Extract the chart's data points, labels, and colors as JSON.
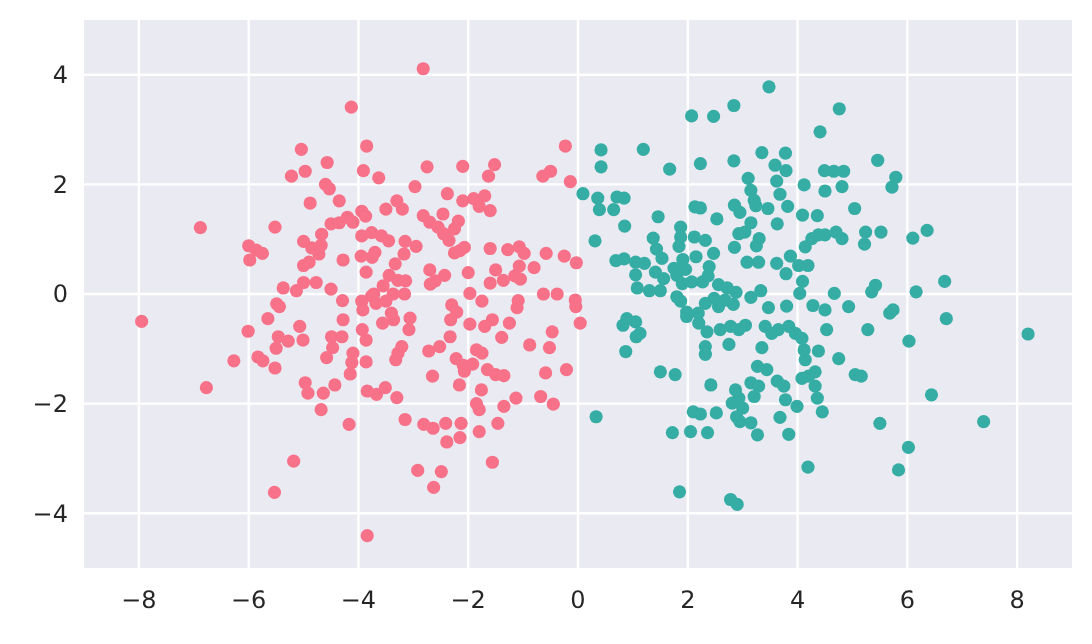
{
  "chart_data": {
    "type": "scatter",
    "marker": "circle",
    "grid": true,
    "xlim": [
      -9,
      9
    ],
    "ylim": [
      -5,
      5
    ],
    "xticks": [
      {
        "value": -8,
        "label": "−8"
      },
      {
        "value": -6,
        "label": "−6"
      },
      {
        "value": -4,
        "label": "−4"
      },
      {
        "value": -2,
        "label": "−2"
      },
      0,
      2,
      4,
      6,
      8
    ],
    "yticks": [
      {
        "value": -4,
        "label": "−4"
      },
      {
        "value": -2,
        "label": "−2"
      },
      0,
      2,
      4
    ],
    "series": [
      {
        "color": "#f77189",
        "x": [
          -2.82,
          -4.13,
          -5.04,
          -3.85,
          -4.57,
          -5.22,
          -4.97,
          -3.91,
          -3.63,
          -2.75,
          -2.1,
          -1.52,
          -1.63,
          -0.23,
          -0.64,
          -0.5,
          -0.14,
          -4.6,
          -4.53,
          -2.97,
          -4.35,
          -4.88,
          -3.3,
          -3.5,
          -3.2,
          -2.38,
          -2.1,
          -1.9,
          -1.7,
          -1.8,
          -1.6,
          -3.94,
          -3.87,
          -4.2,
          -4.1,
          -4.5,
          -4.35,
          -6.88,
          -5.52,
          -2.82,
          -2.7,
          -2.55,
          -2.45,
          -2.35,
          -2.25,
          -2.46,
          -2.18,
          -3.76,
          -3.58,
          -3.45,
          -3.94,
          -5.0,
          -4.85,
          -4.67,
          -4.68,
          -4.72,
          -6.0,
          -5.86,
          -5.75,
          -5.98,
          -3.15,
          -2.95,
          -3.17,
          -3.95,
          -3.75,
          -3.86,
          -3.7,
          -3.33,
          -4.28,
          -5.0,
          -4.9,
          -2.15,
          -2.07,
          -2.25,
          -1.6,
          -1.28,
          -1.07,
          -0.98,
          -1.07,
          -0.8,
          -0.58,
          -0.25,
          -0.03,
          -2.7,
          -2.43,
          -2.0,
          -1.5,
          -1.6,
          -1.36,
          -1.15,
          -1.05,
          -3.44,
          -3.28,
          -3.14,
          -3.55,
          -3.37,
          -3.16,
          -3.76,
          -2.69,
          -2.6,
          -5.0,
          -4.77,
          -4.5,
          -5.37,
          -5.13,
          -5.49,
          -0.63,
          -0.38,
          -0.05,
          -1.97,
          -4.29,
          -3.94,
          -3.72,
          -3.5,
          -2.3,
          -1.75,
          -1.09,
          -7.95,
          -5.44,
          -5.07,
          -6.01,
          -5.65,
          -5.46,
          -5.28,
          -5.01,
          -5.5,
          -6.27,
          -5.83,
          -5.74,
          -5.52,
          -6.77,
          -4.49,
          -4.47,
          -4.58,
          -4.3,
          -4.28,
          -3.93,
          -3.92,
          -3.68,
          -4.1,
          -4.12,
          -4.15,
          -3.86,
          -3.86,
          -4.97,
          -4.92,
          -4.64,
          -4.43,
          -4.68,
          -4.17,
          -3.84,
          -3.67,
          -3.51,
          -3.3,
          -3.32,
          -3.28,
          -3.21,
          -3.08,
          -3.06,
          -3.36,
          -3.56,
          -3.4,
          -2.65,
          -2.52,
          -2.72,
          -2.33,
          -2.32,
          -2.21,
          -1.97,
          -1.7,
          -2.22,
          -2.09,
          -1.92,
          -2.07,
          -1.85,
          -1.75,
          -2.16,
          -1.65,
          -1.5,
          -1.35,
          -1.76,
          -1.85,
          -1.8,
          -1.35,
          -1.13,
          -1.56,
          -1.39,
          -1.25,
          -1.11,
          -0.88,
          -0.52,
          -0.47,
          -0.59,
          -0.21,
          -0.68,
          -0.45,
          -0.04,
          0.04,
          -3.15,
          -2.81,
          -2.64,
          -2.41,
          -2.13,
          -2.39,
          -2.15,
          -1.8,
          -1.46,
          -2.92,
          -2.49,
          -2.63,
          -1.56,
          -5.18,
          -5.53,
          -3.84
        ],
        "values": [
          4.11,
          3.41,
          2.64,
          2.7,
          2.4,
          2.15,
          2.24,
          2.25,
          2.12,
          2.32,
          2.33,
          2.36,
          2.15,
          2.7,
          2.15,
          2.24,
          2.05,
          2.0,
          1.92,
          1.96,
          1.7,
          1.66,
          1.7,
          1.55,
          1.55,
          1.83,
          1.7,
          1.74,
          1.79,
          1.6,
          1.52,
          1.51,
          1.42,
          1.4,
          1.31,
          1.28,
          1.3,
          1.21,
          1.22,
          1.43,
          1.31,
          1.22,
          1.1,
          0.98,
          1.19,
          1.46,
          1.33,
          1.12,
          1.06,
          0.97,
          1.06,
          0.96,
          0.84,
          1.09,
          0.89,
          0.73,
          0.88,
          0.8,
          0.74,
          0.62,
          0.96,
          0.87,
          0.73,
          0.69,
          0.67,
          0.4,
          0.76,
          0.55,
          0.62,
          0.52,
          0.58,
          0.79,
          0.85,
          0.75,
          0.83,
          0.81,
          0.86,
          0.74,
          0.51,
          0.48,
          0.74,
          0.69,
          0.57,
          0.44,
          0.34,
          0.39,
          0.44,
          0.2,
          0.25,
          0.33,
          0.27,
          0.34,
          0.25,
          0.24,
          0.15,
          0.0,
          0.0,
          -0.04,
          0.18,
          0.24,
          0.21,
          0.21,
          0.09,
          0.11,
          0.06,
          -0.18,
          0.0,
          0.0,
          -0.11,
          0.01,
          -0.12,
          -0.13,
          0.0,
          -0.13,
          -0.2,
          -0.13,
          -0.12,
          -0.5,
          -0.23,
          -0.59,
          -0.68,
          -0.45,
          -0.78,
          -0.86,
          -0.84,
          -0.99,
          -1.22,
          -1.15,
          -1.22,
          -1.35,
          -1.71,
          -0.78,
          -0.98,
          -1.16,
          -0.78,
          -0.47,
          -0.65,
          -0.29,
          -0.17,
          -1.08,
          -1.25,
          -1.46,
          -0.84,
          -1.24,
          -1.62,
          -1.81,
          -1.81,
          -1.66,
          -2.11,
          -2.38,
          -1.77,
          -1.83,
          -1.71,
          -1.89,
          -1.2,
          -1.08,
          -0.96,
          -0.65,
          -0.44,
          -0.47,
          -0.53,
          -0.35,
          -1.5,
          -0.96,
          -1.04,
          -0.78,
          -0.47,
          -0.33,
          -0.55,
          -0.59,
          -1.18,
          -1.3,
          -1.28,
          -1.41,
          -1.02,
          -1.08,
          -1.66,
          -1.38,
          -1.47,
          -1.49,
          -1.75,
          -2.0,
          -2.11,
          -2.05,
          -1.9,
          -0.47,
          -0.79,
          -0.53,
          -0.25,
          -0.93,
          -0.98,
          -0.69,
          -1.44,
          -1.38,
          -1.87,
          -2.01,
          -0.23,
          -0.53,
          -2.29,
          -2.38,
          -2.45,
          -2.36,
          -2.36,
          -2.7,
          -2.62,
          -2.51,
          -2.36,
          -3.22,
          -3.24,
          -3.53,
          -3.07,
          -3.05,
          -3.62,
          -4.41
        ]
      },
      {
        "color": "#36ada4",
        "x": [
          3.48,
          4.76,
          4.41,
          2.07,
          2.47,
          2.84,
          0.42,
          1.19,
          0.42,
          1.67,
          2.23,
          2.84,
          3.35,
          3.78,
          3.59,
          3.79,
          4.49,
          4.66,
          4.84,
          5.46,
          5.79,
          5.72,
          0.09,
          0.36,
          0.39,
          0.65,
          0.71,
          0.84,
          0.85,
          0.31,
          3.1,
          3.15,
          3.21,
          3.24,
          2.95,
          2.85,
          3.46,
          3.62,
          3.68,
          3.82,
          4.12,
          4.5,
          4.81,
          1.46,
          1.87,
          2.13,
          2.23,
          2.53,
          4.09,
          4.36,
          5.04,
          3.15,
          3.04,
          2.93,
          3.3,
          3.63,
          3.25,
          2.85,
          3.08,
          3.29,
          1.37,
          1.43,
          1.53,
          1.87,
          1.84,
          1.91,
          2.12,
          2.32,
          2.47,
          2.15,
          1.96,
          0.69,
          0.84,
          1.05,
          1.21,
          1.05,
          1.08,
          1.3,
          1.41,
          1.56,
          1.5,
          1.75,
          1.8,
          1.9,
          2.07,
          2.27,
          2.39,
          2.37,
          2.56,
          2.72,
          2.88,
          3.15,
          3.33,
          3.62,
          3.87,
          3.79,
          4.02,
          4.19,
          4.09,
          4.04,
          4.28,
          4.5,
          4.67,
          3.8,
          3.47,
          4.14,
          4.26,
          4.38,
          4.5,
          4.7,
          4.81,
          5.22,
          5.24,
          5.52,
          6.1,
          6.36,
          5.35,
          5.42,
          6.16,
          6.68,
          5.68,
          5.74,
          6.71,
          4.93,
          1.87,
          1.8,
          2.19,
          2.32,
          2.48,
          2.56,
          2.68,
          2.83,
          1.98,
          0.82,
          0.89,
          1.05,
          1.13,
          1.06,
          0.87,
          1.5,
          1.77,
          0.33,
          1.98,
          2.2,
          2.35,
          2.32,
          2.32,
          2.75,
          2.59,
          2.42,
          2.52,
          2.1,
          2.23,
          2.05,
          2.36,
          1.72,
          1.85,
          2.78,
          2.9,
          2.87,
          2.93,
          2.81,
          3.0,
          2.89,
          2.95,
          3.15,
          3.27,
          3.21,
          3.15,
          3.29,
          3.27,
          3.44,
          3.35,
          3.05,
          2.93,
          2.78,
          3.41,
          3.53,
          3.65,
          3.84,
          3.96,
          4.08,
          4.12,
          4.38,
          4.53,
          4.75,
          4.14,
          4.2,
          4.08,
          4.32,
          3.63,
          3.75,
          3.78,
          3.99,
          3.68,
          3.84,
          4.32,
          4.36,
          4.45,
          4.19,
          5.05,
          5.16,
          5.28,
          6.03,
          6.44,
          5.5,
          6.02,
          5.84,
          7.39,
          8.2
        ],
        "values": [
          3.78,
          3.38,
          2.96,
          3.25,
          3.24,
          3.44,
          2.63,
          2.64,
          2.32,
          2.28,
          2.38,
          2.43,
          2.58,
          2.57,
          2.35,
          2.25,
          2.25,
          2.24,
          2.24,
          2.44,
          2.13,
          1.95,
          1.83,
          1.75,
          1.54,
          1.54,
          1.77,
          1.75,
          1.24,
          0.97,
          2.11,
          1.89,
          1.71,
          1.61,
          1.49,
          1.62,
          1.56,
          2.06,
          1.82,
          1.6,
          1.99,
          1.88,
          1.96,
          1.41,
          1.22,
          1.59,
          1.57,
          1.37,
          1.44,
          1.43,
          1.56,
          1.3,
          1.13,
          1.1,
          1.01,
          1.28,
          0.88,
          0.85,
          0.58,
          0.58,
          1.02,
          0.82,
          0.65,
          1.04,
          0.87,
          0.63,
          1.04,
          0.98,
          0.74,
          0.68,
          0.45,
          0.61,
          0.64,
          0.58,
          0.56,
          0.35,
          0.11,
          0.06,
          0.4,
          0.28,
          0.06,
          0.47,
          0.34,
          0.19,
          0.22,
          0.22,
          0.5,
          0.33,
          0.17,
          0.11,
          0.03,
          -0.06,
          0.06,
          0.56,
          0.69,
          0.37,
          0.52,
          0.52,
          0.23,
          0.01,
          -0.21,
          -0.29,
          0.01,
          -0.22,
          -0.25,
          0.86,
          1.01,
          1.08,
          1.08,
          1.13,
          1.01,
          0.91,
          1.13,
          1.13,
          1.02,
          1.16,
          0.04,
          0.16,
          0.04,
          0.23,
          -0.35,
          -0.29,
          -0.45,
          -0.23,
          -0.13,
          -0.05,
          -0.35,
          -0.17,
          -0.08,
          -0.23,
          -0.11,
          -0.19,
          -0.33,
          -0.57,
          -0.45,
          -0.51,
          -0.72,
          -0.78,
          -1.05,
          -1.42,
          -1.47,
          -2.24,
          -0.41,
          -0.53,
          -0.69,
          -0.96,
          -1.1,
          -0.92,
          -0.65,
          -1.66,
          -2.17,
          -2.15,
          -2.19,
          -2.51,
          -2.53,
          -2.53,
          -3.61,
          -3.75,
          -3.84,
          -1.75,
          -1.9,
          -1.99,
          -2.08,
          -2.24,
          -2.33,
          -2.35,
          -2.57,
          -1.87,
          -1.62,
          -1.68,
          -1.32,
          -1.38,
          -0.98,
          -0.57,
          -0.65,
          -0.59,
          -0.59,
          -0.72,
          -0.65,
          -0.59,
          -0.72,
          -0.81,
          -1.02,
          -1.04,
          -0.65,
          -1.18,
          -1.2,
          -1.5,
          -1.54,
          -1.42,
          -1.59,
          -1.68,
          -1.93,
          -2.05,
          -2.25,
          -2.56,
          -1.68,
          -1.9,
          -2.15,
          -3.16,
          -1.47,
          -1.5,
          -0.65,
          -0.86,
          -1.84,
          -2.36,
          -2.8,
          -3.21,
          -2.33,
          -0.73
        ]
      }
    ]
  }
}
